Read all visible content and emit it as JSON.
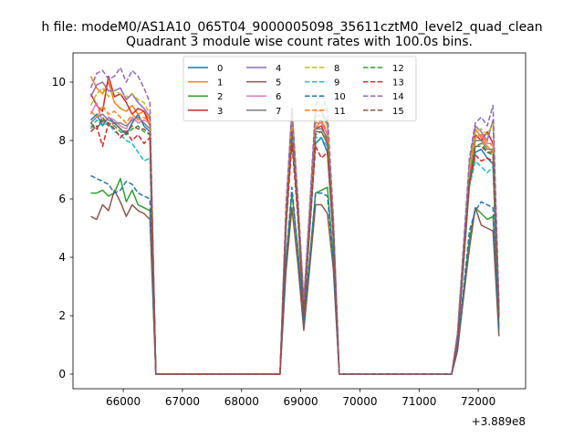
{
  "chart_data": {
    "type": "line",
    "suptitle": "h file: modeM0/AS1A10_065T04_9000005098_35611cztM0_level2_quad_clean",
    "title": "Quadrant 3 module wise count rates with 100.0s bins.",
    "xlabel": "",
    "ylabel": "",
    "x_offset_label": "+3.889e8",
    "xlim": [
      65150,
      72800
    ],
    "ylim": [
      -0.5,
      11
    ],
    "x_ticks": [
      66000,
      67000,
      68000,
      69000,
      70000,
      71000,
      72000
    ],
    "y_ticks": [
      0,
      2,
      4,
      6,
      8,
      10
    ],
    "grid": false,
    "legend_position": "top-center",
    "legend_columns": 4,
    "x": [
      65450,
      65550,
      65650,
      65750,
      65850,
      65950,
      66050,
      66150,
      66250,
      66350,
      66450,
      66550,
      68650,
      68750,
      68850,
      68950,
      69050,
      69150,
      69250,
      69350,
      69450,
      69550,
      69650,
      71550,
      71650,
      71750,
      71850,
      71950,
      72050,
      72150,
      72250,
      72350
    ],
    "series": [
      {
        "name": "0",
        "color": "#1f77b4",
        "style": "solid",
        "values": [
          8.7,
          8.9,
          8.5,
          8.8,
          8.6,
          8.4,
          8.2,
          8.6,
          8.9,
          8.5,
          8.3,
          0,
          0,
          5.2,
          8.1,
          5.6,
          2.0,
          4.9,
          7.9,
          8.1,
          7.6,
          4.7,
          0,
          0,
          1.2,
          3.8,
          6.5,
          7.6,
          7.7,
          7.4,
          7.2,
          1.6
        ]
      },
      {
        "name": "1",
        "color": "#ff7f0e",
        "style": "solid",
        "values": [
          10.2,
          9.8,
          9.6,
          10.0,
          9.3,
          9.1,
          9.0,
          9.2,
          8.9,
          9.0,
          8.7,
          0,
          0,
          5.5,
          8.6,
          5.9,
          2.4,
          5.3,
          8.4,
          8.7,
          8.2,
          5.1,
          0,
          0,
          1.3,
          4.1,
          7.0,
          8.4,
          8.1,
          7.8,
          7.6,
          2.2
        ]
      },
      {
        "name": "2",
        "color": "#2ca02c",
        "style": "solid",
        "values": [
          6.2,
          6.2,
          6.3,
          6.1,
          6.2,
          6.7,
          5.9,
          6.3,
          5.8,
          5.7,
          5.6,
          0,
          0,
          3.9,
          6.2,
          4.3,
          1.8,
          3.9,
          6.2,
          6.3,
          6.4,
          4.0,
          0,
          0,
          0.9,
          2.8,
          4.6,
          5.7,
          5.5,
          5.3,
          5.4,
          1.5
        ]
      },
      {
        "name": "3",
        "color": "#d62728",
        "style": "solid",
        "values": [
          9.6,
          9.2,
          9.0,
          10.2,
          9.5,
          9.6,
          9.3,
          8.9,
          9.1,
          9.0,
          8.5,
          0,
          0,
          5.3,
          8.5,
          5.7,
          2.2,
          5.2,
          8.4,
          8.5,
          8.0,
          5.0,
          0,
          0,
          1.2,
          4.0,
          6.8,
          8.2,
          8.0,
          8.3,
          7.9,
          2.0
        ]
      },
      {
        "name": "4",
        "color": "#9467bd",
        "style": "solid",
        "values": [
          9.5,
          9.9,
          10.0,
          9.7,
          9.7,
          9.8,
          9.4,
          9.6,
          9.3,
          9.1,
          8.8,
          0,
          0,
          5.6,
          9.1,
          6.0,
          2.5,
          5.6,
          9.0,
          9.0,
          8.6,
          5.3,
          0,
          0,
          1.4,
          4.3,
          7.2,
          8.5,
          8.3,
          8.0,
          8.7,
          2.3
        ]
      },
      {
        "name": "5",
        "color": "#8c564b",
        "style": "solid",
        "values": [
          5.4,
          5.3,
          5.8,
          5.6,
          6.3,
          5.9,
          5.4,
          5.8,
          5.6,
          5.5,
          5.3,
          0,
          0,
          3.5,
          5.7,
          3.8,
          1.5,
          3.6,
          5.8,
          5.8,
          5.5,
          3.6,
          0,
          0,
          0.8,
          2.6,
          4.3,
          5.7,
          5.1,
          5.0,
          4.9,
          1.3
        ]
      },
      {
        "name": "6",
        "color": "#e377c2",
        "style": "solid",
        "values": [
          8.9,
          9.3,
          8.6,
          8.8,
          8.7,
          8.5,
          8.4,
          8.8,
          8.6,
          8.7,
          8.6,
          0,
          0,
          5.3,
          8.7,
          5.8,
          2.3,
          5.3,
          8.6,
          8.6,
          8.2,
          5.1,
          0,
          0,
          1.3,
          4.1,
          6.9,
          8.1,
          8.2,
          7.9,
          7.9,
          2.1
        ]
      },
      {
        "name": "7",
        "color": "#7f7f7f",
        "style": "solid",
        "values": [
          8.6,
          8.8,
          8.9,
          8.7,
          8.6,
          8.6,
          8.5,
          8.7,
          8.8,
          8.6,
          8.4,
          0,
          0,
          5.2,
          8.5,
          5.7,
          2.2,
          5.2,
          8.4,
          8.4,
          8.1,
          5.0,
          0,
          0,
          1.2,
          4.0,
          6.8,
          8.0,
          8.0,
          7.7,
          7.7,
          2.0
        ]
      },
      {
        "name": "8",
        "color": "#bcbd22",
        "style": "dashed",
        "values": [
          9.2,
          9.6,
          9.8,
          9.5,
          9.7,
          9.6,
          9.5,
          9.6,
          9.4,
          9.3,
          8.9,
          0,
          0,
          5.5,
          8.9,
          5.9,
          2.4,
          5.4,
          8.8,
          8.9,
          8.5,
          5.2,
          0,
          0,
          1.3,
          4.2,
          7.0,
          8.3,
          8.4,
          8.2,
          8.6,
          2.2
        ]
      },
      {
        "name": "9",
        "color": "#17becf",
        "style": "dashed",
        "values": [
          8.4,
          8.7,
          8.5,
          8.6,
          8.3,
          8.2,
          8.0,
          7.9,
          7.6,
          7.3,
          7.4,
          0,
          0,
          5.0,
          8.2,
          5.4,
          2.1,
          5.0,
          8.1,
          8.1,
          7.8,
          4.8,
          0,
          0,
          1.1,
          3.7,
          6.4,
          7.3,
          7.1,
          6.9,
          7.1,
          1.9
        ]
      },
      {
        "name": "10",
        "color": "#1f77b4",
        "style": "dashed",
        "values": [
          6.8,
          6.7,
          6.6,
          6.5,
          6.2,
          6.3,
          6.6,
          6.5,
          6.2,
          6.1,
          6.0,
          0,
          0,
          3.9,
          6.4,
          4.2,
          1.7,
          3.9,
          6.2,
          6.2,
          6.1,
          3.9,
          0,
          0,
          0.9,
          2.9,
          4.9,
          5.6,
          5.9,
          5.8,
          5.7,
          1.5
        ]
      },
      {
        "name": "11",
        "color": "#ff7f0e",
        "style": "dashed",
        "values": [
          9.0,
          8.8,
          9.2,
          8.9,
          9.0,
          8.8,
          8.6,
          8.9,
          8.7,
          8.8,
          8.6,
          0,
          0,
          5.3,
          8.6,
          5.8,
          2.3,
          5.3,
          8.6,
          8.7,
          8.3,
          5.1,
          0,
          0,
          1.2,
          4.1,
          6.8,
          8.1,
          8.2,
          8.0,
          7.8,
          2.1
        ]
      },
      {
        "name": "12",
        "color": "#2ca02c",
        "style": "dashed",
        "values": [
          8.5,
          8.4,
          8.7,
          8.6,
          8.5,
          8.3,
          8.2,
          8.4,
          8.5,
          8.3,
          8.2,
          0,
          0,
          5.1,
          8.3,
          5.6,
          2.1,
          5.1,
          8.2,
          8.3,
          7.9,
          4.9,
          0,
          0,
          1.2,
          3.9,
          6.6,
          7.8,
          7.9,
          7.6,
          7.5,
          2.0
        ]
      },
      {
        "name": "13",
        "color": "#d62728",
        "style": "dashed",
        "values": [
          8.3,
          8.5,
          7.8,
          8.6,
          8.4,
          8.1,
          8.3,
          8.0,
          8.2,
          7.9,
          8.1,
          0,
          0,
          5.0,
          7.9,
          5.4,
          2.0,
          4.9,
          7.8,
          7.4,
          7.6,
          4.7,
          0,
          0,
          1.1,
          3.8,
          6.5,
          7.5,
          7.3,
          7.4,
          7.3,
          1.9
        ]
      },
      {
        "name": "14",
        "color": "#9467bd",
        "style": "dashed",
        "values": [
          9.8,
          10.3,
          10.4,
          10.1,
          10.2,
          10.5,
          10.0,
          10.4,
          10.2,
          9.8,
          9.3,
          0,
          0,
          5.8,
          9.0,
          6.1,
          2.5,
          5.7,
          9.2,
          9.6,
          9.0,
          5.4,
          0,
          0,
          1.4,
          4.4,
          7.4,
          8.6,
          8.8,
          8.5,
          9.2,
          2.4
        ]
      },
      {
        "name": "15",
        "color": "#8c564b",
        "style": "dashed",
        "values": [
          8.6,
          8.4,
          8.8,
          8.5,
          8.6,
          8.4,
          8.3,
          8.5,
          8.4,
          8.4,
          8.2,
          0,
          0,
          5.1,
          8.3,
          5.6,
          2.1,
          5.1,
          8.3,
          8.3,
          7.9,
          4.9,
          0,
          0,
          1.2,
          3.9,
          6.6,
          7.8,
          7.8,
          7.6,
          7.6,
          2.0
        ]
      }
    ]
  }
}
